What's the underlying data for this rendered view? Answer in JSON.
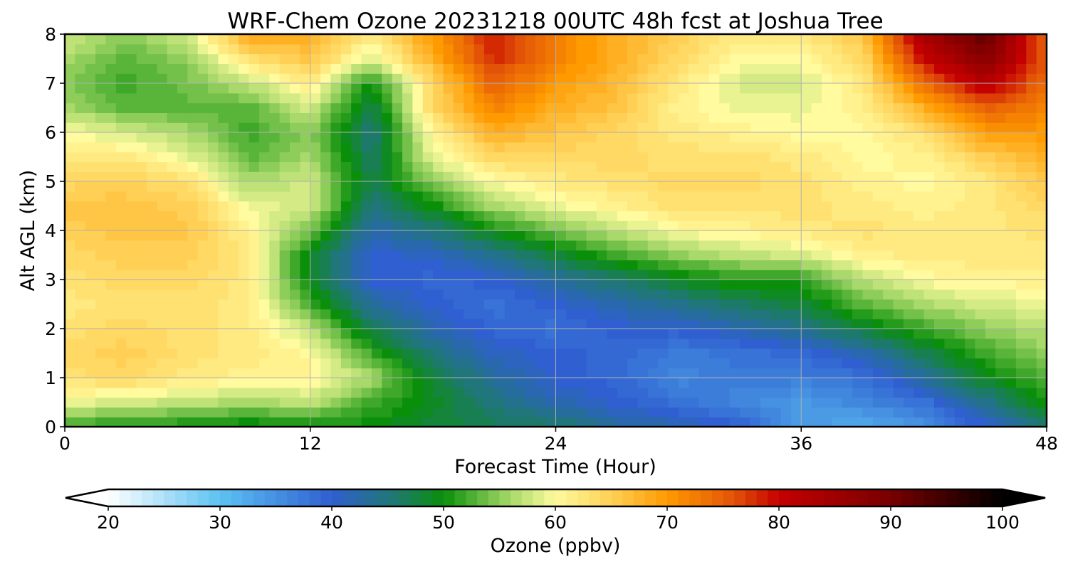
{
  "chart_data": {
    "type": "heatmap",
    "subtype": "filled-contour",
    "title": "WRF-Chem Ozone  20231218 00UTC 48h fcst at Joshua Tree",
    "xlabel": "Forecast Time (Hour)",
    "ylabel": "Alt AGL (km)",
    "xlim": [
      0,
      48
    ],
    "ylim": [
      0,
      8
    ],
    "xticks": [
      0,
      12,
      24,
      36,
      48
    ],
    "yticks": [
      0,
      1,
      2,
      3,
      4,
      5,
      6,
      7,
      8
    ],
    "grid": true,
    "x": [
      0,
      3,
      6,
      9,
      12,
      15,
      18,
      21,
      24,
      27,
      30,
      33,
      36,
      39,
      42,
      45,
      48
    ],
    "y": [
      0,
      0.5,
      1,
      1.5,
      2,
      2.5,
      3,
      3.5,
      4,
      4.5,
      5,
      5.5,
      6,
      6.5,
      7,
      7.5,
      8
    ],
    "z_units": "ppbv",
    "z": [
      [
        51,
        51,
        50,
        49,
        50,
        50,
        48,
        47,
        46,
        43,
        42,
        40,
        34,
        32,
        35,
        40,
        46
      ],
      [
        59,
        58,
        57,
        56,
        57,
        52,
        49,
        45,
        42,
        40,
        38,
        36,
        34,
        36,
        38,
        44,
        50
      ],
      [
        63,
        64,
        62,
        61,
        61,
        56,
        48,
        43,
        40,
        39,
        36,
        37,
        37,
        38,
        43,
        49,
        53
      ],
      [
        64,
        65,
        63,
        62,
        60,
        52,
        45,
        41,
        40,
        39,
        37,
        38,
        39,
        42,
        47,
        52,
        55
      ],
      [
        63,
        64,
        63,
        62,
        57,
        47,
        42,
        39,
        38,
        40,
        40,
        42,
        44,
        48,
        52,
        55,
        57
      ],
      [
        62,
        63,
        63,
        62,
        52,
        43,
        40,
        38,
        40,
        42,
        44,
        46,
        48,
        53,
        56,
        58,
        59
      ],
      [
        63,
        64,
        64,
        62,
        49,
        40,
        39,
        40,
        43,
        46,
        49,
        51,
        51,
        57,
        60,
        61,
        61
      ],
      [
        64,
        65,
        65,
        62,
        49,
        40,
        41,
        44,
        48,
        52,
        55,
        57,
        58,
        61,
        62,
        62,
        62
      ],
      [
        65,
        66,
        66,
        61,
        54,
        42,
        45,
        50,
        54,
        57,
        60,
        61,
        62,
        63,
        62,
        62,
        63
      ],
      [
        66,
        66,
        65,
        59,
        58,
        45,
        50,
        56,
        59,
        61,
        63,
        63,
        63,
        62,
        61,
        62,
        64
      ],
      [
        64,
        65,
        63,
        56,
        58,
        47,
        55,
        60,
        62,
        63,
        64,
        64,
        63,
        61,
        60,
        62,
        66
      ],
      [
        62,
        62,
        59,
        53,
        56,
        46,
        59,
        64,
        64,
        64,
        63,
        63,
        62,
        60,
        61,
        65,
        68
      ],
      [
        60,
        58,
        56,
        52,
        55,
        45,
        61,
        68,
        66,
        64,
        62,
        61,
        60,
        60,
        63,
        70,
        70
      ],
      [
        56,
        53,
        53,
        53,
        58,
        47,
        64,
        72,
        68,
        66,
        61,
        59,
        59,
        61,
        68,
        75,
        72
      ],
      [
        55,
        52,
        54,
        57,
        62,
        50,
        64,
        75,
        70,
        67,
        62,
        58,
        58,
        62,
        74,
        82,
        74
      ],
      [
        56,
        53,
        55,
        63,
        66,
        58,
        68,
        78,
        72,
        68,
        64,
        60,
        60,
        64,
        80,
        88,
        75
      ],
      [
        58,
        55,
        58,
        69,
        68,
        62,
        70,
        79,
        72,
        68,
        65,
        62,
        62,
        66,
        84,
        92,
        74
      ]
    ],
    "colorbar": {
      "label": "Ozone  (ppbv)",
      "min": 20,
      "max": 100,
      "ticks": [
        20,
        30,
        40,
        50,
        60,
        70,
        80,
        90,
        100
      ],
      "extend": "both",
      "orientation": "horizontal",
      "color_stops": [
        [
          20,
          "#ffffff"
        ],
        [
          30,
          "#5cc2f2"
        ],
        [
          40,
          "#2f5fd0"
        ],
        [
          46,
          "#1d7a6a"
        ],
        [
          50,
          "#0a8f0a"
        ],
        [
          56,
          "#a8d96a"
        ],
        [
          60,
          "#fffb9e"
        ],
        [
          65,
          "#ffd055"
        ],
        [
          70,
          "#ff9a00"
        ],
        [
          76,
          "#e25308"
        ],
        [
          80,
          "#c50000"
        ],
        [
          90,
          "#780000"
        ],
        [
          100,
          "#000000"
        ]
      ]
    }
  }
}
